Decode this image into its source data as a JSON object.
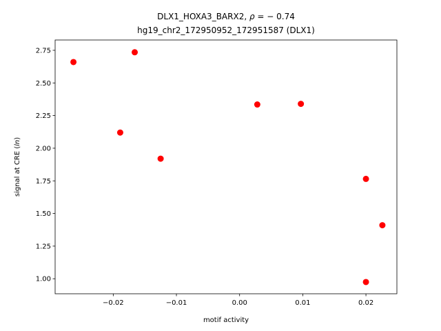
{
  "chart_data": {
    "type": "scatter",
    "title_line1_prefix": "DLX1_HOXA3_BARX2, ",
    "title_line1_rho_symbol": "ρ",
    "title_line1_rho_value": " = − 0.74",
    "title_line2": "hg19_chr2_172950952_172951587 (DLX1)",
    "xlabel": "motif activity",
    "ylabel_prefix": "signal at CRE (",
    "ylabel_italic": "ln",
    "ylabel_suffix": ")",
    "xlim": [
      -0.0292,
      0.0249
    ],
    "ylim": [
      0.885,
      2.829
    ],
    "xticks": [
      -0.02,
      -0.01,
      0.0,
      0.01,
      0.02
    ],
    "xtick_labels": [
      "−0.02",
      "−0.01",
      "0.00",
      "0.01",
      "0.02"
    ],
    "yticks": [
      1.0,
      1.25,
      1.5,
      1.75,
      2.0,
      2.25,
      2.5,
      2.75
    ],
    "ytick_labels": [
      "1.00",
      "1.25",
      "1.50",
      "1.75",
      "2.00",
      "2.25",
      "2.50",
      "2.75"
    ],
    "marker_color": "#ff0000",
    "points": [
      {
        "x": -0.0263,
        "y": 2.66
      },
      {
        "x": -0.0166,
        "y": 2.735
      },
      {
        "x": -0.0189,
        "y": 2.12
      },
      {
        "x": -0.0125,
        "y": 1.92
      },
      {
        "x": 0.0028,
        "y": 2.335
      },
      {
        "x": 0.0097,
        "y": 2.34
      },
      {
        "x": 0.02,
        "y": 1.765
      },
      {
        "x": 0.0226,
        "y": 1.41
      },
      {
        "x": 0.02,
        "y": 0.975
      }
    ]
  }
}
